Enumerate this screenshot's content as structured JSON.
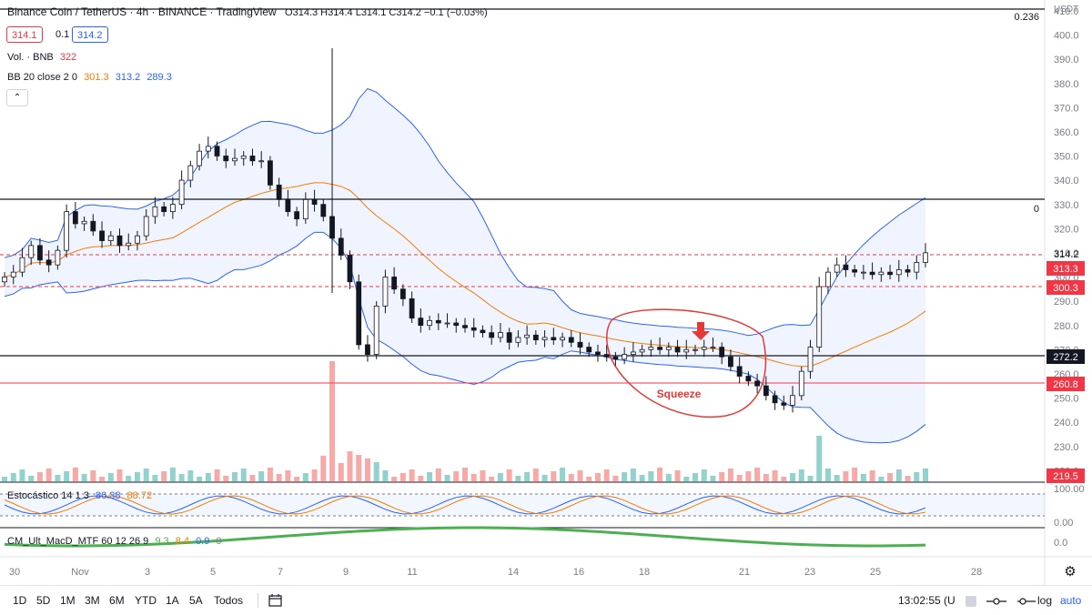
{
  "header": {
    "title": "Binance Coin / TetherUS · 4h · BINANCE · TradingView",
    "ohlc": "O314.3 H314.4 L314.1 C314.2 −0.1 (−0.03%)",
    "bid": "314.1",
    "spread": "0.1",
    "ask": "314.2"
  },
  "indicators": {
    "volume": "Vol. · BNB",
    "volume_value": "322",
    "bb": "BB 20 close 2 0",
    "bb_basis": "301.3",
    "bb_upper": "313.2",
    "bb_lower": "289.3",
    "stoch": "Estocástico 14 1 3",
    "stoch_k": "86.38",
    "stoch_d": "88.72",
    "macd": "CM_Ult_MacD_MTF 60 12 26 9",
    "macd_v1": "9.3",
    "macd_v2": "8.4",
    "macd_v3": "0.9",
    "macd_v4": "0"
  },
  "price_axis": {
    "currency": "USDT",
    "ticks": [
      "410.0",
      "400.0",
      "390.0",
      "380.0",
      "370.0",
      "360.0",
      "350.0",
      "340.0",
      "330.0",
      "320.0",
      "310.0",
      "300.0",
      "290.0",
      "280.0",
      "270.0",
      "260.0",
      "250.0",
      "240.0",
      "230.0",
      "220.0"
    ],
    "last_price": "314.2",
    "labels": [
      {
        "text": "313.3",
        "color": "#f23645"
      },
      {
        "text": "300.3",
        "color": "#f23645"
      },
      {
        "text": "272.2",
        "color": "#131722"
      },
      {
        "text": "260.8",
        "color": "#f23645"
      },
      {
        "text": "219.5",
        "color": "#f23645"
      }
    ],
    "fib_0236": "0.236",
    "fib_0": "0",
    "stoch_ticks": [
      "100.00",
      "0.00"
    ],
    "macd_tick": "0.0"
  },
  "time_axis": [
    "30",
    "Nov",
    "3",
    "5",
    "7",
    "9",
    "11",
    "14",
    "16",
    "18",
    "21",
    "23",
    "25",
    "28"
  ],
  "annotation": {
    "text": "Squeeze"
  },
  "bottom_bar": {
    "timeframes": [
      "1D",
      "5D",
      "1M",
      "3M",
      "6M",
      "YTD",
      "1A",
      "5A",
      "Todos"
    ],
    "clock": "13:02:55 (U",
    "log": "log",
    "auto": "auto"
  },
  "colors": {
    "up": "#26a69a",
    "down": "#ef5350",
    "bb_band": "#2962ff",
    "bb_basis": "#f57c00",
    "stoch_k": "#2962ff",
    "stoch_d": "#f57c00"
  },
  "chart_data": {
    "type": "candlestick",
    "symbol": "BNB/USDT",
    "interval": "4h",
    "ylim": [
      220,
      410
    ],
    "close_series": [
      304,
      306,
      312,
      317,
      311,
      309,
      315,
      331,
      326,
      327,
      323,
      319,
      321,
      317,
      318,
      321,
      329,
      333,
      331,
      334,
      344,
      350,
      356,
      358,
      354,
      352,
      353,
      354,
      352,
      352,
      342,
      336,
      331,
      328,
      336,
      334,
      329,
      320,
      313,
      302,
      276,
      272,
      292,
      304,
      299,
      295,
      287,
      284,
      286,
      285,
      285,
      284,
      283,
      282,
      281,
      279,
      281,
      277,
      279,
      280,
      278,
      279,
      278,
      279,
      277,
      275,
      273,
      272,
      271,
      270,
      272,
      273,
      274,
      275,
      274,
      275,
      273,
      274,
      274,
      275,
      275,
      271,
      267,
      263,
      261,
      259,
      255,
      252,
      251,
      255,
      265,
      275,
      300,
      306,
      309,
      307,
      306,
      306,
      305,
      306,
      305,
      307,
      306,
      310,
      314
    ],
    "volume_note": "volume histogram below price; large spike near Nov 8"
  }
}
